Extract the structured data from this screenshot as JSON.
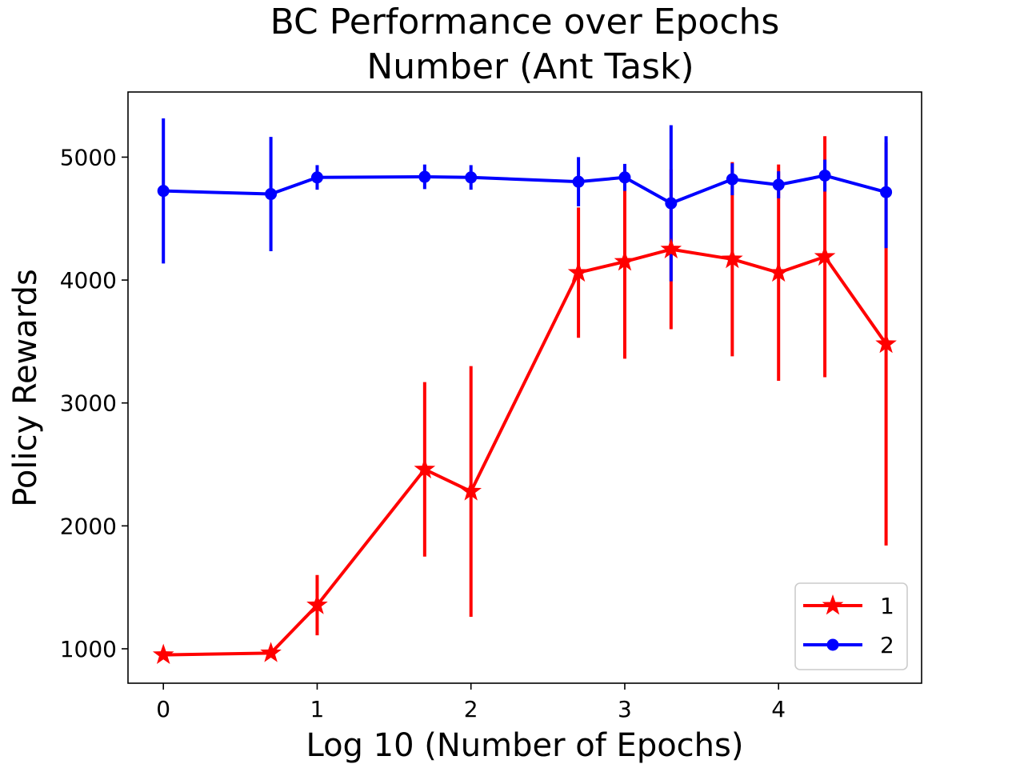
{
  "chart_data": {
    "type": "line",
    "title_lines": [
      "BC Performance over Epochs",
      "Number (Ant Task)"
    ],
    "xlabel": "Log 10 (Number of Epochs)",
    "ylabel": "Policy Rewards",
    "xlim": [
      -0.23,
      4.93
    ],
    "ylim": [
      720,
      5530
    ],
    "xticks": [
      0,
      1,
      2,
      3,
      4
    ],
    "xtick_labels": [
      "0",
      "1",
      "2",
      "3",
      "4"
    ],
    "yticks": [
      1000,
      2000,
      3000,
      4000,
      5000
    ],
    "ytick_labels": [
      "1000",
      "2000",
      "3000",
      "4000",
      "5000"
    ],
    "grid": false,
    "legend_position": "lower-right",
    "x": [
      0,
      0.699,
      1,
      1.699,
      2,
      2.699,
      3,
      3.301,
      3.699,
      4,
      4.301,
      4.699
    ],
    "series": [
      {
        "name": "1",
        "color": "#ff0000",
        "marker": "star",
        "values": [
          950,
          965,
          1355,
          2460,
          2280,
          4060,
          4150,
          4250,
          4170,
          4060,
          4190,
          3480
        ],
        "errors": [
          25,
          25,
          245,
          710,
          1020,
          530,
          790,
          650,
          790,
          880,
          980,
          1640
        ]
      },
      {
        "name": "2",
        "color": "#0000ff",
        "marker": "circle",
        "values": [
          4725,
          4700,
          4835,
          4840,
          4835,
          4800,
          4835,
          4625,
          4820,
          4775,
          4850,
          4715
        ],
        "errors": [
          590,
          465,
          100,
          100,
          100,
          200,
          110,
          635,
          130,
          110,
          130,
          455
        ]
      }
    ]
  }
}
